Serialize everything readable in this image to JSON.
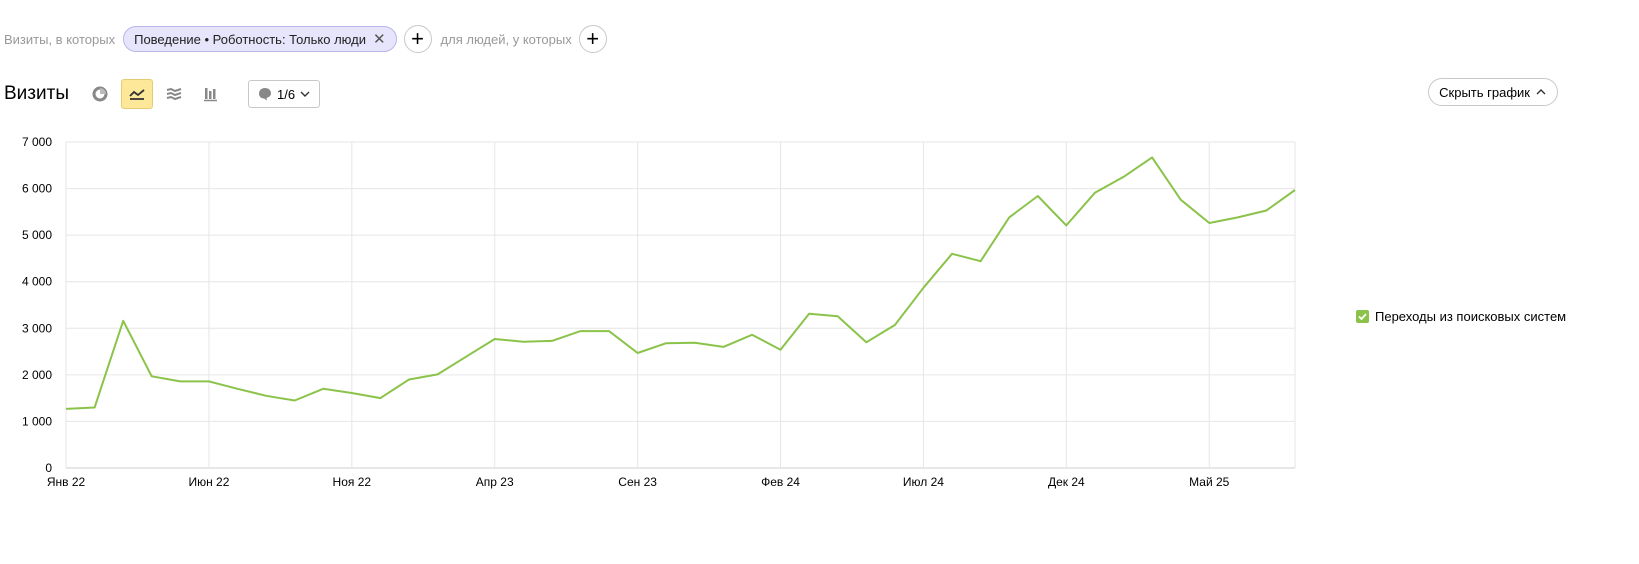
{
  "filters": {
    "visits_label": "Визиты, в которых",
    "chip_label": "Поведение • Роботность: Только люди",
    "people_label": "для людей, у которых",
    "add_icon": "plus-icon",
    "close_icon": "close-icon"
  },
  "toolbar": {
    "title": "Визиты",
    "annotations_label": "1/6",
    "hide_chart_label": "Скрыть график",
    "active_chart_icon": "line-chart-icon",
    "icons": [
      "pie-chart-icon",
      "line-chart-icon",
      "stacked-area-icon",
      "bar-chart-icon",
      "comment-icon"
    ]
  },
  "colors": {
    "series": "#8bc34a",
    "chip_bg": "#e6e5fb",
    "active_btn": "#fde89a",
    "grid": "#e6e6e6"
  },
  "legend": {
    "series_label": "Переходы из поисковых систем"
  },
  "chart_data": {
    "type": "line",
    "x_tick_labels": [
      "Янв 22",
      "Июн 22",
      "Ноя 22",
      "Апр 23",
      "Сен 23",
      "Фев 24",
      "Июл 24",
      "Дек 24",
      "Май 25"
    ],
    "y_tick_labels": [
      "0",
      "1 000",
      "2 000",
      "3 000",
      "4 000",
      "5 000",
      "6 000",
      "7 000"
    ],
    "ylim": [
      0,
      7000
    ],
    "grid": true,
    "legend_position": "right",
    "series": [
      {
        "name": "Переходы из поисковых систем",
        "x": [
          "2022-01",
          "2022-02",
          "2022-03",
          "2022-04",
          "2022-05",
          "2022-06",
          "2022-07",
          "2022-08",
          "2022-09",
          "2022-10",
          "2022-11",
          "2022-12",
          "2023-01",
          "2023-02",
          "2023-03",
          "2023-04",
          "2023-05",
          "2023-06",
          "2023-07",
          "2023-08",
          "2023-09",
          "2023-10",
          "2023-11",
          "2023-12",
          "2024-01",
          "2024-02",
          "2024-03",
          "2024-04",
          "2024-05",
          "2024-06",
          "2024-07",
          "2024-08",
          "2024-09",
          "2024-10",
          "2024-11",
          "2024-12",
          "2025-01",
          "2025-02",
          "2025-03",
          "2025-04",
          "2025-05",
          "2025-06",
          "2025-07",
          "2025-08"
        ],
        "values": [
          1270,
          1300,
          3160,
          1970,
          1860,
          1860,
          1700,
          1550,
          1450,
          1700,
          1610,
          1500,
          1900,
          2010,
          2390,
          2770,
          2710,
          2730,
          2940,
          2940,
          2470,
          2680,
          2690,
          2600,
          2860,
          2540,
          3310,
          3260,
          2700,
          3070,
          3870,
          4600,
          4440,
          5380,
          5840,
          5210,
          5910,
          6250,
          6670,
          5760,
          5260,
          5380,
          5530,
          5970
        ]
      }
    ]
  }
}
